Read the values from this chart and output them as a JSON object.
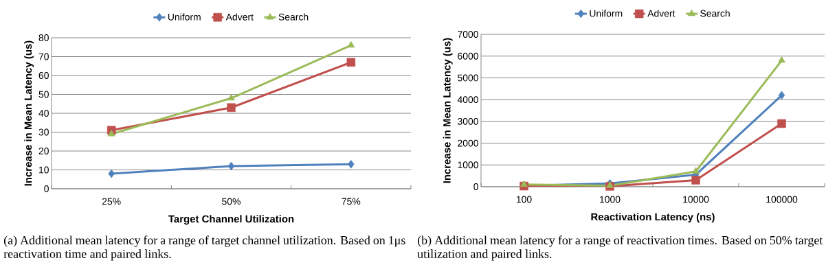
{
  "chart_data": [
    {
      "type": "line",
      "xlabel": "Target Channel Utilization",
      "ylabel": "Increase in Mean Latency (us)",
      "categories": [
        "25%",
        "50%",
        "75%"
      ],
      "ylim": [
        0,
        80
      ],
      "yticks": [
        0,
        10,
        20,
        30,
        40,
        50,
        60,
        70,
        80
      ],
      "grid": "y",
      "legend": "top",
      "series": [
        {
          "name": "Uniform",
          "color": "#4f81bd",
          "marker": "diamond",
          "values": [
            8,
            12,
            13
          ]
        },
        {
          "name": "Advert",
          "color": "#c0504d",
          "marker": "square",
          "values": [
            31,
            43,
            67
          ]
        },
        {
          "name": "Search",
          "color": "#9bbb59",
          "marker": "triangle",
          "values": [
            29,
            48,
            76
          ]
        }
      ],
      "annotations": [
        "(a) Additional mean latency for a range of target channel utilization. Based on 1μs reactivation time and paired links."
      ]
    },
    {
      "type": "line",
      "xlabel": "Reactivation Latency (ns)",
      "ylabel": "Increase in Mean Latency (us)",
      "categories": [
        "100",
        "1000",
        "10000",
        "100000"
      ],
      "ylim": [
        0,
        7000
      ],
      "yticks": [
        0,
        1000,
        2000,
        3000,
        4000,
        5000,
        6000,
        7000
      ],
      "grid": "y",
      "legend": "top",
      "series": [
        {
          "name": "Uniform",
          "color": "#4f81bd",
          "marker": "diamond",
          "values": [
            50,
            150,
            550,
            4200
          ]
        },
        {
          "name": "Advert",
          "color": "#c0504d",
          "marker": "square",
          "values": [
            30,
            20,
            300,
            2900
          ]
        },
        {
          "name": "Search",
          "color": "#9bbb59",
          "marker": "triangle",
          "values": [
            100,
            50,
            700,
            5800
          ]
        }
      ],
      "annotations": [
        "(b) Additional mean latency for a range of reactivation times. Based on 50% target utilization and paired links."
      ]
    }
  ]
}
